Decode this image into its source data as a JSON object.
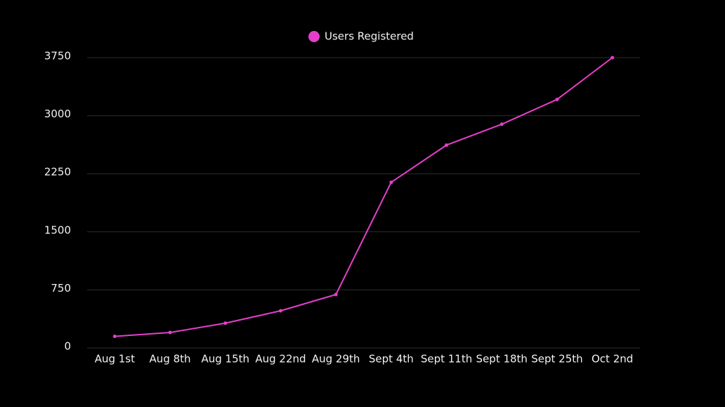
{
  "chart_data": {
    "type": "line",
    "categories": [
      "Aug 1st",
      "Aug 8th",
      "Aug 15th",
      "Aug 22nd",
      "Aug 29th",
      "Sept 4th",
      "Sept 11th",
      "Sept 18th",
      "Sept 25th",
      "Oct 2nd"
    ],
    "series": [
      {
        "name": "Users Registered",
        "color": "#e43fcb",
        "values": [
          150,
          200,
          320,
          480,
          690,
          2140,
          2620,
          2890,
          3210,
          3750
        ]
      }
    ],
    "ylim": [
      0,
      3750
    ],
    "yticks": [
      0,
      750,
      1500,
      2250,
      3000,
      3750
    ],
    "grid": true,
    "legend": "top"
  }
}
